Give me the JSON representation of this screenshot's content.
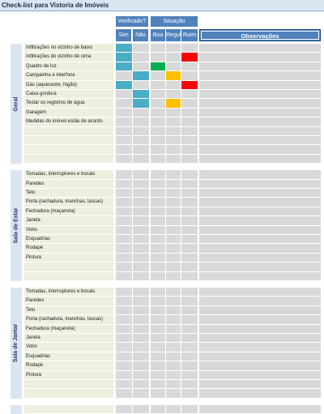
{
  "sheet_title": "Check-list para Vistoria de Imóveis",
  "headers": {
    "verificado": "Verificado?",
    "situacao": "Situação",
    "sim": "Sim",
    "nao": "Não",
    "boa": "Boa",
    "regular": "Regular",
    "ruim": "Ruim",
    "observacoes": "Observações"
  },
  "colors": {
    "header_blue": "#4f81bd",
    "verified_mark": "#4bacc6",
    "boa_mark": "#00b050",
    "regular_mark": "#ffc000",
    "ruim_mark": "#ff0000",
    "empty_cell": "#d9d9d9",
    "item_background": "#ebf1de",
    "section_background": "#dbe5f1"
  },
  "sections": [
    {
      "name": "Geral",
      "rows": [
        {
          "item": "Infiltrações no vizinho de baixo",
          "sim": true,
          "nao": false,
          "situacao": ""
        },
        {
          "item": "Infiltrações do vizinho de cima",
          "sim": true,
          "nao": false,
          "situacao": "ruim"
        },
        {
          "item": "Quadro de luz",
          "sim": true,
          "nao": false,
          "situacao": "boa"
        },
        {
          "item": "Campainha e interfone",
          "sim": false,
          "nao": true,
          "situacao": "regular"
        },
        {
          "item": "Gás (aquecedor, fogão)",
          "sim": true,
          "nao": false,
          "situacao": "ruim"
        },
        {
          "item": "Caixa gordura",
          "sim": false,
          "nao": true,
          "situacao": ""
        },
        {
          "item": "Testar os registros de água",
          "sim": false,
          "nao": true,
          "situacao": "regular"
        },
        {
          "item": "Garagem",
          "sim": false,
          "nao": false,
          "situacao": ""
        },
        {
          "item": "Medidas do imóvel estão de acordo",
          "sim": false,
          "nao": false,
          "situacao": ""
        },
        {
          "item": "",
          "sim": false,
          "nao": false,
          "situacao": ""
        },
        {
          "item": "",
          "sim": false,
          "nao": false,
          "situacao": ""
        },
        {
          "item": "",
          "sim": false,
          "nao": false,
          "situacao": ""
        },
        {
          "item": "",
          "sim": false,
          "nao": false,
          "situacao": ""
        }
      ]
    },
    {
      "name": "Sala de Estar",
      "rows": [
        {
          "item": "Tomadas, interruptores e bocais",
          "sim": false,
          "nao": false,
          "situacao": ""
        },
        {
          "item": "Paredes",
          "sim": false,
          "nao": false,
          "situacao": ""
        },
        {
          "item": "Teto",
          "sim": false,
          "nao": false,
          "situacao": ""
        },
        {
          "item": "Porta (rachadura, manchas, lascas)",
          "sim": false,
          "nao": false,
          "situacao": ""
        },
        {
          "item": "Fechadura (maçaneta)",
          "sim": false,
          "nao": false,
          "situacao": ""
        },
        {
          "item": "Janela",
          "sim": false,
          "nao": false,
          "situacao": ""
        },
        {
          "item": "Vidro",
          "sim": false,
          "nao": false,
          "situacao": ""
        },
        {
          "item": "Esquadrias",
          "sim": false,
          "nao": false,
          "situacao": ""
        },
        {
          "item": "Rodapé",
          "sim": false,
          "nao": false,
          "situacao": ""
        },
        {
          "item": "Pintura",
          "sim": false,
          "nao": false,
          "situacao": ""
        },
        {
          "item": "",
          "sim": false,
          "nao": false,
          "situacao": ""
        },
        {
          "item": "",
          "sim": false,
          "nao": false,
          "situacao": ""
        }
      ]
    },
    {
      "name": "Sala de Jantar",
      "rows": [
        {
          "item": "Tomadas, interruptores e bocais",
          "sim": false,
          "nao": false,
          "situacao": ""
        },
        {
          "item": "Paredes",
          "sim": false,
          "nao": false,
          "situacao": ""
        },
        {
          "item": "Teto",
          "sim": false,
          "nao": false,
          "situacao": ""
        },
        {
          "item": "Porta (rachadura, manchas, lascas)",
          "sim": false,
          "nao": false,
          "situacao": ""
        },
        {
          "item": "Fechadura (maçaneta)",
          "sim": false,
          "nao": false,
          "situacao": ""
        },
        {
          "item": "Janela",
          "sim": false,
          "nao": false,
          "situacao": ""
        },
        {
          "item": "Vidro",
          "sim": false,
          "nao": false,
          "situacao": ""
        },
        {
          "item": "Esquadrias",
          "sim": false,
          "nao": false,
          "situacao": ""
        },
        {
          "item": "Rodapé",
          "sim": false,
          "nao": false,
          "situacao": ""
        },
        {
          "item": "Pintura",
          "sim": false,
          "nao": false,
          "situacao": ""
        },
        {
          "item": "",
          "sim": false,
          "nao": false,
          "situacao": ""
        },
        {
          "item": "",
          "sim": false,
          "nao": false,
          "situacao": ""
        }
      ]
    },
    {
      "name": "",
      "rows": [
        {
          "item": "",
          "sim": false,
          "nao": false,
          "situacao": ""
        }
      ]
    }
  ]
}
